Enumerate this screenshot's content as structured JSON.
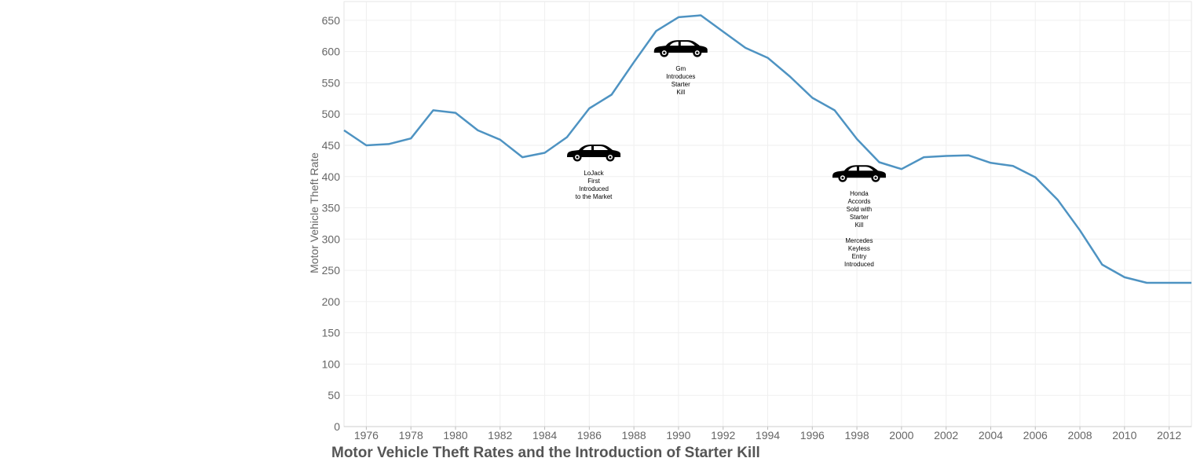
{
  "chart_data": {
    "type": "line",
    "title": "Motor Vehicle Theft Rates and the Introduction of Starter Kill",
    "xlabel": "",
    "ylabel": "Motor Vehicle Theft Rate",
    "xlim": [
      1975,
      2013
    ],
    "ylim": [
      0,
      680
    ],
    "x_ticks": [
      "1976",
      "1978",
      "1980",
      "1982",
      "1984",
      "1986",
      "1988",
      "1990",
      "1992",
      "1994",
      "1996",
      "1998",
      "2000",
      "2002",
      "2004",
      "2006",
      "2008",
      "2010",
      "2012"
    ],
    "y_ticks": [
      "0",
      "50",
      "100",
      "150",
      "200",
      "250",
      "300",
      "350",
      "400",
      "450",
      "500",
      "550",
      "600",
      "650"
    ],
    "grid": true,
    "line_color": "#4e93c2",
    "series": [
      {
        "x": [
          1975,
          1976,
          1977,
          1978,
          1979,
          1980,
          1981,
          1982,
          1983,
          1984,
          1985,
          1986,
          1987,
          1988,
          1989,
          1990,
          1991,
          1992,
          1993,
          1994,
          1995,
          1996,
          1997,
          1998,
          1999,
          2000,
          2001,
          2002,
          2003,
          2004,
          2005,
          2006,
          2007,
          2008,
          2009,
          2010,
          2011,
          2012,
          2013
        ],
        "values": [
          474,
          450,
          452,
          461,
          506,
          502,
          474,
          459,
          431,
          438,
          463,
          509,
          531,
          583,
          633,
          655,
          658,
          632,
          606,
          590,
          560,
          526,
          506,
          460,
          423,
          412,
          431,
          433,
          434,
          422,
          417,
          399,
          363,
          314,
          259,
          239,
          230,
          230,
          230
        ]
      }
    ],
    "annotations": [
      {
        "id": "lojack",
        "x": 1986.2,
        "y": 440,
        "lines": [
          "LoJack",
          "First",
          "Introduced",
          "to the Market"
        ],
        "icon": "car-icon"
      },
      {
        "id": "gm",
        "x": 1990.1,
        "y": 607,
        "lines": [
          "Gm",
          "Introduces",
          "Starter",
          "Kill"
        ],
        "icon": "car-icon"
      },
      {
        "id": "honda",
        "x": 1998.1,
        "y": 407,
        "lines": [
          "Honda",
          "Accords",
          "Sold with",
          "Starter",
          "Kill",
          "",
          "Mercedes",
          "Keyless",
          "Entry",
          "Introduced"
        ],
        "icon": "car-icon"
      }
    ]
  }
}
